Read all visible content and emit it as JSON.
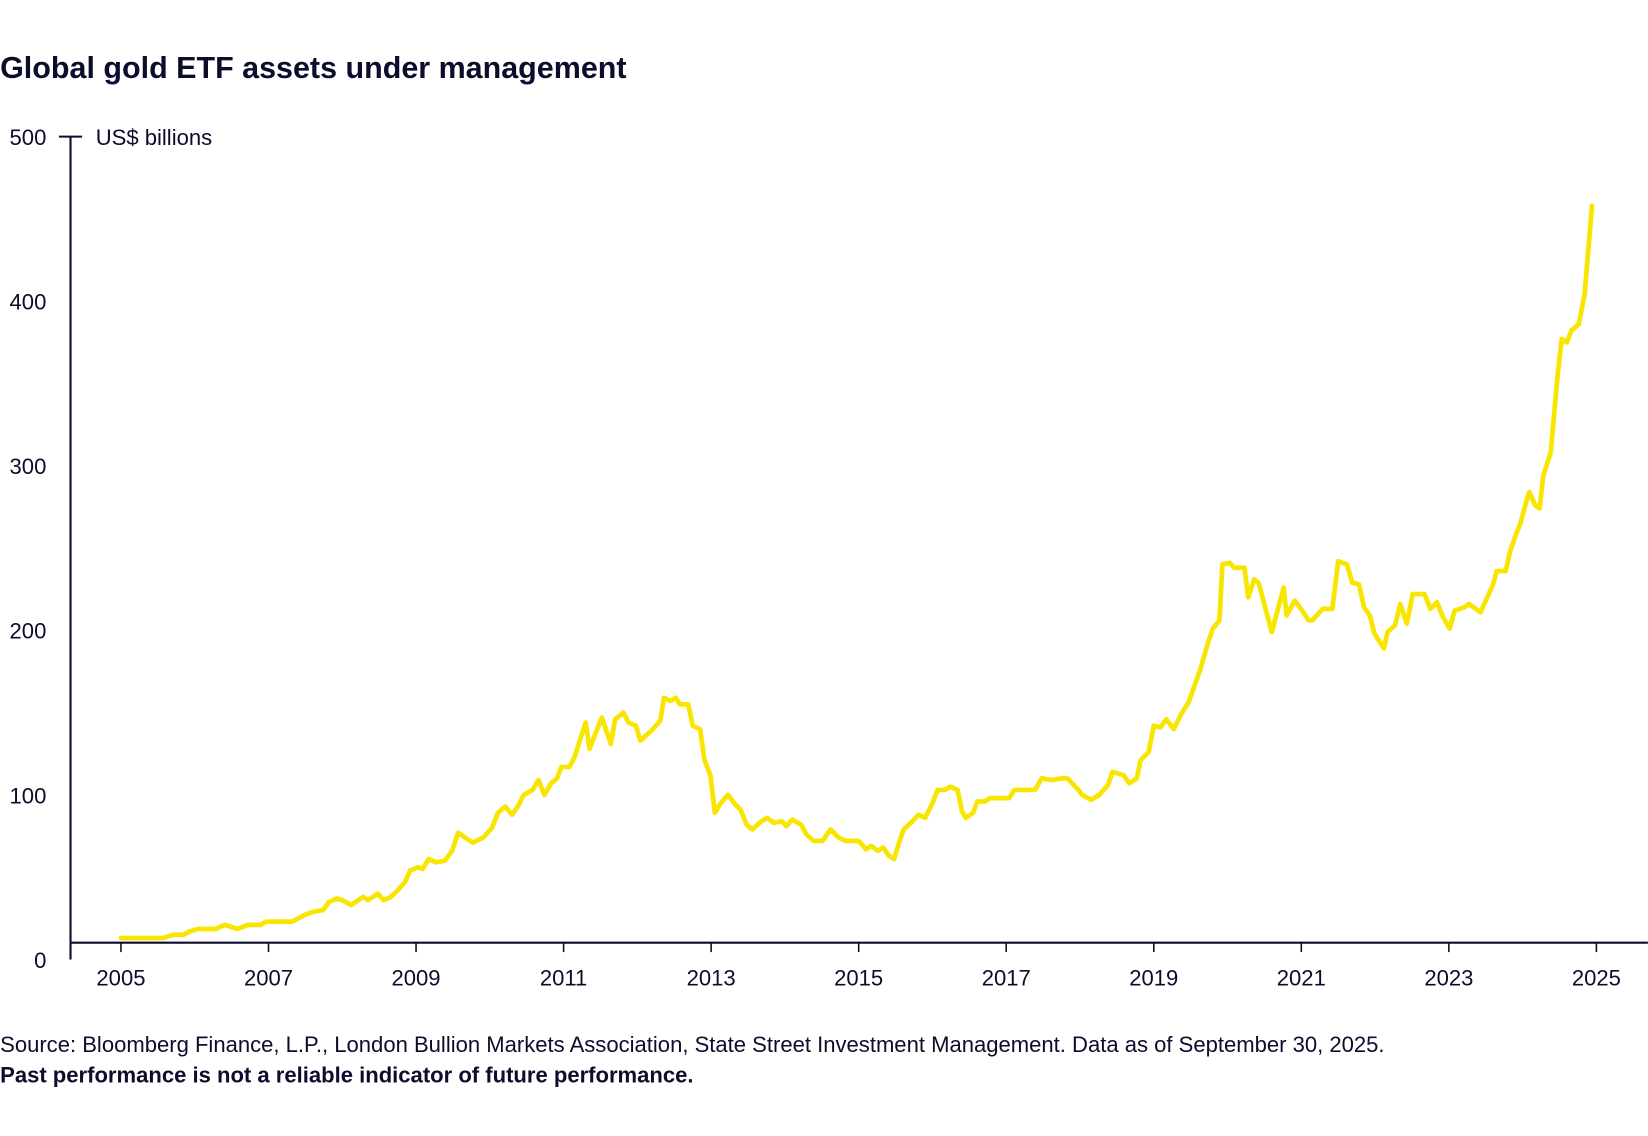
{
  "title": "Global gold ETF assets under management",
  "colors": {
    "line": "#F8E600",
    "text": "#0C0C2C"
  },
  "footer": {
    "source": "Source: Bloomberg Finance, L.P., London Bullion Markets Association, State Street Investment Management. Data as of September 30, 2025.",
    "disclaimer": "Past performance is not a reliable indicator of future performance."
  },
  "chart_data": {
    "type": "line",
    "title": "Global gold ETF assets under management",
    "xlabel": "",
    "ylabel": "US$ billions",
    "ylim": [
      0,
      500
    ],
    "xlim": [
      2004.7,
      2025.7
    ],
    "yticks": [
      "0",
      "100",
      "200",
      "300",
      "400",
      "500"
    ],
    "xticks": [
      "2005",
      "2007",
      "2009",
      "2011",
      "2013",
      "2015",
      "2017",
      "2019",
      "2021",
      "2023",
      "2025"
    ],
    "grid": false,
    "series": [
      {
        "x": [
          2005.0,
          2005.57,
          2005.71,
          2005.85,
          2005.93,
          2006.04,
          2006.28,
          2006.41,
          2006.58,
          2006.72,
          2006.89,
          2006.97,
          2007.32,
          2007.49,
          2007.61,
          2007.74,
          2007.82,
          2007.93,
          2008.0,
          2008.12,
          2008.28,
          2008.35,
          2008.48,
          2008.56,
          2008.66,
          2008.77,
          2008.85,
          2008.92,
          2009.03,
          2009.09,
          2009.17,
          2009.27,
          2009.39,
          2009.49,
          2009.57,
          2009.7,
          2009.77,
          2009.91,
          2010.03,
          2010.11,
          2010.21,
          2010.3,
          2010.38,
          2010.46,
          2010.58,
          2010.66,
          2010.74,
          2010.83,
          2010.91,
          2010.97,
          2011.08,
          2011.15,
          2011.22,
          2011.3,
          2011.35,
          2011.42,
          2011.52,
          2011.64,
          2011.7,
          2011.81,
          2011.88,
          2011.98,
          2012.04,
          2012.19,
          2012.31,
          2012.36,
          2012.45,
          2012.52,
          2012.58,
          2012.69,
          2012.75,
          2012.85,
          2012.91,
          2012.99,
          2013.05,
          2013.13,
          2013.23,
          2013.33,
          2013.4,
          2013.48,
          2013.56,
          2013.68,
          2013.76,
          2013.85,
          2013.96,
          2014.02,
          2014.1,
          2014.22,
          2014.29,
          2014.39,
          2014.51,
          2014.62,
          2014.73,
          2014.83,
          2015.0,
          2015.1,
          2015.17,
          2015.26,
          2015.33,
          2015.41,
          2015.48,
          2015.54,
          2015.61,
          2015.73,
          2015.81,
          2015.9,
          2016.0,
          2016.07,
          2016.17,
          2016.24,
          2016.34,
          2016.4,
          2016.45,
          2016.55,
          2016.61,
          2016.71,
          2016.78,
          2017.04,
          2017.11,
          2017.39,
          2017.48,
          2017.62,
          2017.75,
          2017.83,
          2017.98,
          2018.03,
          2018.15,
          2018.26,
          2018.38,
          2018.44,
          2018.59,
          2018.67,
          2018.77,
          2018.82,
          2018.93,
          2019.0,
          2019.09,
          2019.17,
          2019.27,
          2019.37,
          2019.47,
          2019.63,
          2019.74,
          2019.8,
          2019.89,
          2019.93,
          2020.03,
          2020.09,
          2020.23,
          2020.28,
          2020.36,
          2020.42,
          2020.6,
          2020.76,
          2020.8,
          2020.91,
          2020.98,
          2021.1,
          2021.15,
          2021.29,
          2021.42,
          2021.5,
          2021.62,
          2021.69,
          2021.78,
          2021.85,
          2021.93,
          2021.99,
          2022.12,
          2022.17,
          2022.27,
          2022.34,
          2022.43,
          2022.51,
          2022.67,
          2022.75,
          2022.84,
          2022.91,
          2023.01,
          2023.08,
          2023.21,
          2023.27,
          2023.43,
          2023.6,
          2023.65,
          2023.77,
          2023.83,
          2023.9,
          2023.97,
          2024.03,
          2024.09,
          2024.17,
          2024.23,
          2024.28,
          2024.38,
          2024.47,
          2024.53,
          2024.6,
          2024.66,
          2024.76,
          2024.84,
          2024.94
        ],
        "y": [
          13,
          13,
          15,
          15,
          17,
          18.5,
          18.5,
          21,
          18.5,
          21,
          21,
          23,
          23,
          27,
          29,
          30,
          35,
          37,
          36,
          33,
          38,
          36,
          40,
          36,
          38,
          43,
          47,
          54,
          56,
          55,
          61,
          59,
          60,
          66,
          77,
          73,
          71,
          74,
          80,
          89,
          93,
          88,
          93,
          100,
          103,
          109,
          100,
          107,
          110,
          117,
          117,
          123,
          133,
          144,
          128,
          136,
          147,
          131,
          146,
          150,
          144,
          142,
          133,
          139,
          145,
          159,
          157,
          159,
          155,
          155,
          142,
          140,
          121,
          112,
          89,
          95,
          100,
          94,
          91,
          82,
          79,
          84,
          86,
          83,
          84,
          81,
          85,
          82,
          76,
          72,
          72,
          79,
          74,
          72,
          72,
          67,
          69,
          66,
          68,
          63,
          61,
          70,
          79,
          84,
          88,
          86,
          95,
          103,
          103,
          105,
          103,
          90,
          86,
          89,
          96,
          96,
          98,
          98,
          103,
          103,
          110,
          109,
          110,
          110,
          103,
          100,
          97,
          100,
          106,
          114,
          112,
          107,
          110,
          121,
          126,
          142,
          141,
          146,
          140,
          149,
          156,
          176,
          193,
          201,
          206,
          240,
          241,
          238,
          238,
          220,
          231,
          229,
          199,
          226,
          209,
          218,
          214,
          206,
          206,
          213,
          213,
          242,
          240,
          229,
          228,
          214,
          209,
          198,
          189,
          199,
          203,
          216,
          204,
          222,
          222,
          213,
          217,
          209,
          201,
          212,
          214,
          216,
          211,
          228,
          236,
          236,
          248,
          257,
          265,
          275,
          284,
          276,
          274,
          294,
          308,
          353,
          377,
          375,
          382,
          386,
          404,
          458
        ]
      }
    ]
  }
}
